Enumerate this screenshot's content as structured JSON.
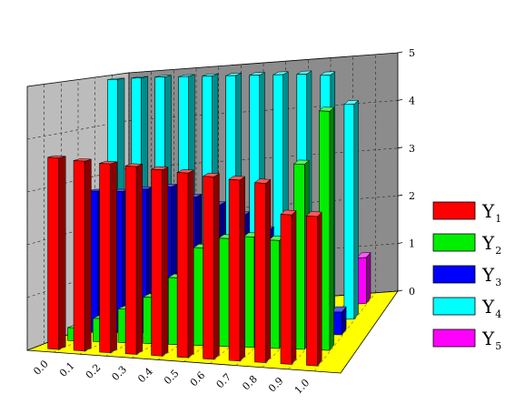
{
  "chart_data": {
    "type": "bar",
    "title": "",
    "xlabel": "",
    "ylabel": "",
    "categories": [
      "0.0",
      "0.1",
      "0.2",
      "0.3",
      "0.4",
      "0.5",
      "0.6",
      "0.7",
      "0.8",
      "0.9",
      "1.0"
    ],
    "ylim": [
      0,
      5
    ],
    "yticks": [
      "0",
      "1",
      "2",
      "3",
      "4",
      "5"
    ],
    "grid": true,
    "legend_position": "right",
    "series": [
      {
        "name": "Y",
        "sub": "1",
        "color": "#ff0000",
        "values": [
          3.65,
          3.62,
          3.6,
          3.58,
          3.55,
          3.52,
          3.48,
          3.45,
          3.42,
          2.85,
          2.85
        ]
      },
      {
        "name": "Y",
        "sub": "2",
        "color": "#00ee00",
        "values": [
          0.25,
          0.45,
          0.65,
          0.9,
          1.3,
          1.9,
          2.1,
          2.15,
          2.1,
          3.6,
          4.65
        ]
      },
      {
        "name": "Y",
        "sub": "3",
        "color": "#0000ff",
        "values": [
          2.8,
          2.8,
          2.85,
          2.9,
          2.7,
          2.55,
          2.35,
          2.05,
          1.6,
          1.05,
          0.45
        ]
      },
      {
        "name": "Y",
        "sub": "4",
        "color": "#00ffff",
        "values": [
          4.95,
          4.97,
          4.98,
          4.98,
          4.98,
          4.98,
          4.98,
          4.98,
          4.98,
          4.95,
          4.35
        ]
      },
      {
        "name": "Y",
        "sub": "5",
        "color": "#ff00ff",
        "values": [
          0,
          0,
          0,
          0,
          0,
          0,
          0,
          0,
          0,
          0,
          0.95
        ]
      }
    ]
  }
}
